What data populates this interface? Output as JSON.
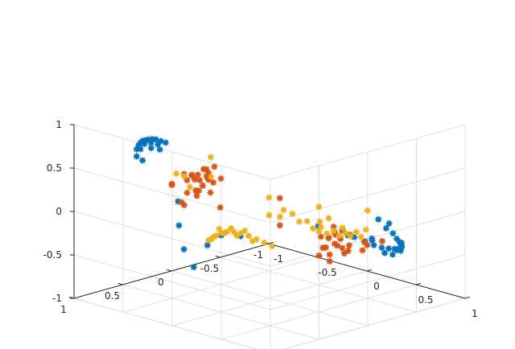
{
  "chart_data": {
    "type": "scatter",
    "projection": "3d",
    "grid": true,
    "box": "open",
    "xlim": [
      -1,
      1
    ],
    "ylim": [
      -1,
      1
    ],
    "zlim": [
      -1,
      1
    ],
    "ticks": {
      "x": [
        {
          "value": -1,
          "label": "-1"
        },
        {
          "value": -0.5,
          "label": "-0.5"
        },
        {
          "value": 0,
          "label": "0"
        },
        {
          "value": 0.5,
          "label": "0.5"
        },
        {
          "value": 1,
          "label": "1"
        }
      ],
      "y": [
        {
          "value": -1,
          "label": "-1"
        },
        {
          "value": -0.5,
          "label": "-0.5"
        },
        {
          "value": 0,
          "label": "0"
        },
        {
          "value": 0.5,
          "label": "0.5"
        },
        {
          "value": 1,
          "label": "1"
        }
      ],
      "z": [
        {
          "value": -1,
          "label": "-1"
        },
        {
          "value": -0.5,
          "label": "-0.5"
        },
        {
          "value": 0,
          "label": "0"
        },
        {
          "value": 0.5,
          "label": "0.5"
        },
        {
          "value": 1,
          "label": "1"
        }
      ]
    },
    "colors": {
      "axis": "#262626",
      "grid": "#dfdfdf",
      "series": [
        "#0072bd",
        "#d95319",
        "#edb120"
      ]
    },
    "marker": "asterisk",
    "series": [
      {
        "color": "#0072bd",
        "points": [
          [
            -0.66,
            0.7,
            0.73
          ],
          [
            -0.7,
            0.64,
            0.74
          ],
          [
            -0.74,
            0.58,
            0.74
          ],
          [
            -0.78,
            0.52,
            0.73
          ],
          [
            -0.81,
            0.46,
            0.71
          ],
          [
            -0.84,
            0.4,
            0.69
          ],
          [
            -0.86,
            0.34,
            0.67
          ],
          [
            -0.88,
            0.28,
            0.64
          ],
          [
            -0.89,
            0.22,
            0.6
          ],
          [
            -0.9,
            0.16,
            0.56
          ],
          [
            -0.72,
            0.6,
            0.68
          ],
          [
            -0.78,
            0.5,
            0.69
          ],
          [
            -0.83,
            0.38,
            0.65
          ],
          [
            -0.86,
            0.28,
            0.59
          ],
          [
            -0.64,
            0.72,
            0.66
          ],
          [
            -0.6,
            0.7,
            0.62
          ],
          [
            -0.75,
            0.46,
            0.64
          ],
          [
            -0.82,
            0.3,
            0.55
          ],
          [
            0.28,
            0.78,
            0.06
          ],
          [
            0.2,
            0.84,
            -0.06
          ],
          [
            0.12,
            0.9,
            -0.32
          ],
          [
            0.3,
            0.6,
            0.0
          ],
          [
            -0.02,
            0.92,
            0.4
          ],
          [
            0.06,
            0.94,
            -0.12
          ],
          [
            -0.05,
            0.88,
            0.1
          ],
          [
            -0.15,
            -0.9,
            -0.55
          ],
          [
            -0.05,
            -0.92,
            -0.6
          ],
          [
            0.05,
            -0.93,
            -0.62
          ],
          [
            0.15,
            -0.92,
            -0.63
          ],
          [
            0.25,
            -0.9,
            -0.62
          ],
          [
            0.35,
            -0.87,
            -0.59
          ],
          [
            0.45,
            -0.83,
            -0.55
          ],
          [
            0.55,
            -0.78,
            -0.5
          ],
          [
            0.63,
            -0.72,
            -0.44
          ],
          [
            0.7,
            -0.65,
            -0.38
          ],
          [
            0.76,
            -0.58,
            -0.31
          ],
          [
            0.8,
            -0.5,
            -0.22
          ],
          [
            0.84,
            -0.42,
            -0.12
          ],
          [
            0.87,
            -0.32,
            -0.02
          ],
          [
            0.89,
            -0.22,
            0.12
          ],
          [
            0.3,
            -0.88,
            -0.66
          ],
          [
            0.5,
            -0.8,
            -0.54
          ],
          [
            0.65,
            -0.7,
            -0.38
          ],
          [
            0.78,
            -0.55,
            -0.28
          ],
          [
            0.86,
            -0.36,
            0.02
          ],
          [
            0.1,
            -0.95,
            -0.58
          ],
          [
            0.4,
            -0.86,
            -0.64
          ],
          [
            0.72,
            -0.62,
            -0.42
          ],
          [
            -0.2,
            -0.7,
            -0.45
          ],
          [
            0.2,
            -0.6,
            -0.4
          ],
          [
            0.5,
            -0.55,
            -0.35
          ]
        ]
      },
      {
        "color": "#d95319",
        "points": [
          [
            -0.93,
            -0.22,
            0.0
          ],
          [
            -0.91,
            -0.18,
            0.08
          ],
          [
            -0.94,
            -0.26,
            -0.08
          ],
          [
            -0.9,
            -0.14,
            0.04
          ],
          [
            -0.95,
            -0.2,
            -0.12
          ],
          [
            -0.92,
            -0.3,
            0.06
          ],
          [
            -0.88,
            -0.2,
            -0.04
          ],
          [
            -0.96,
            -0.12,
            0.02
          ],
          [
            -0.9,
            -0.26,
            0.12
          ],
          [
            -0.94,
            -0.32,
            -0.02
          ],
          [
            -0.89,
            -0.1,
            0.1
          ],
          [
            -0.97,
            -0.18,
            0.06
          ],
          [
            -0.92,
            -0.08,
            -0.1
          ],
          [
            -0.86,
            -0.24,
            0.02
          ],
          [
            -0.95,
            -0.28,
            0.1
          ],
          [
            -0.91,
            -0.34,
            -0.06
          ],
          [
            -0.88,
            -0.14,
            -0.14
          ],
          [
            -0.93,
            -0.06,
            0.12
          ],
          [
            -0.84,
            -0.2,
            0.08
          ],
          [
            -0.9,
            -0.3,
            -0.16
          ],
          [
            -0.82,
            -0.1,
            -0.05
          ],
          [
            -0.86,
            -0.3,
            0.15
          ],
          [
            -0.87,
            0.0,
            -0.2
          ],
          [
            0.89,
            0.2,
            -0.05
          ],
          [
            0.92,
            0.26,
            0.0
          ],
          [
            0.88,
            0.14,
            -0.1
          ],
          [
            0.94,
            0.22,
            0.05
          ],
          [
            0.9,
            0.3,
            0.08
          ],
          [
            0.86,
            0.2,
            0.1
          ],
          [
            0.93,
            0.12,
            -0.06
          ],
          [
            0.91,
            0.34,
            -0.02
          ],
          [
            0.87,
            0.26,
            -0.14
          ],
          [
            0.95,
            0.28,
            0.12
          ],
          [
            0.9,
            0.08,
            0.04
          ],
          [
            0.84,
            0.3,
            -0.06
          ],
          [
            0.92,
            0.18,
            0.14
          ],
          [
            0.88,
            0.36,
            0.1
          ],
          [
            0.96,
            0.16,
            -0.1
          ],
          [
            0.86,
            0.1,
            -0.18
          ],
          [
            0.89,
            0.24,
            0.18
          ],
          [
            0.93,
            0.32,
            -0.18
          ],
          [
            0.82,
            0.22,
            0.02
          ],
          [
            0.9,
            0.4,
            -0.1
          ],
          [
            0.7,
            0.6,
            0.25
          ],
          [
            0.6,
            0.5,
            0.5
          ],
          [
            -0.45,
            0.55,
            0.35
          ],
          [
            -0.35,
            0.65,
            0.4
          ],
          [
            -0.3,
            0.6,
            0.2
          ],
          [
            0.25,
            -0.72,
            -0.5
          ],
          [
            0.4,
            -0.6,
            -0.45
          ],
          [
            0.55,
            -0.4,
            -0.4
          ],
          [
            0.8,
            -0.35,
            -0.2
          ],
          [
            -0.8,
            -0.3,
            -0.3
          ],
          [
            0.1,
            0.6,
            0.6
          ]
        ]
      },
      {
        "color": "#edb120",
        "points": [
          [
            0.7,
            0.76,
            0.1
          ],
          [
            0.66,
            0.8,
            0.14
          ],
          [
            0.62,
            0.84,
            0.18
          ],
          [
            0.58,
            0.88,
            0.21
          ],
          [
            0.54,
            0.91,
            0.22
          ],
          [
            0.5,
            0.94,
            0.22
          ],
          [
            0.46,
            0.96,
            0.2
          ],
          [
            0.42,
            0.97,
            0.16
          ],
          [
            0.38,
            0.98,
            0.11
          ],
          [
            0.74,
            0.72,
            0.06
          ],
          [
            0.64,
            0.82,
            0.12
          ],
          [
            0.56,
            0.9,
            0.18
          ],
          [
            0.48,
            0.95,
            0.2
          ],
          [
            0.4,
            0.98,
            0.14
          ],
          [
            0.34,
            0.97,
            0.08
          ],
          [
            0.6,
            0.86,
            0.24
          ],
          [
            0.52,
            0.92,
            0.26
          ],
          [
            0.44,
            0.96,
            0.24
          ],
          [
            -0.6,
            -0.84,
            -0.48
          ],
          [
            -0.5,
            -0.89,
            -0.55
          ],
          [
            -0.4,
            -0.93,
            -0.6
          ],
          [
            -0.3,
            -0.96,
            -0.62
          ],
          [
            -0.2,
            -0.98,
            -0.62
          ],
          [
            -0.1,
            -0.99,
            -0.58
          ],
          [
            0.0,
            -0.99,
            -0.52
          ],
          [
            -0.55,
            -0.86,
            -0.56
          ],
          [
            -0.45,
            -0.9,
            -0.62
          ],
          [
            -0.35,
            -0.94,
            -0.66
          ],
          [
            -0.25,
            -0.97,
            -0.66
          ],
          [
            -0.15,
            -0.98,
            -0.64
          ],
          [
            -0.05,
            -0.99,
            -0.62
          ],
          [
            -0.65,
            -0.8,
            -0.44
          ],
          [
            -0.38,
            -0.9,
            -0.52
          ],
          [
            -0.2,
            -0.95,
            -0.55
          ],
          [
            -0.85,
            0.1,
            0.2
          ],
          [
            -0.7,
            -0.7,
            -0.28
          ],
          [
            -0.92,
            -0.05,
            0.1
          ],
          [
            -0.6,
            -0.6,
            -0.42
          ],
          [
            -0.5,
            0.1,
            0.5
          ],
          [
            0.1,
            0.92,
            0.6
          ],
          [
            0.8,
            0.3,
            0.4
          ],
          [
            0.7,
            0.6,
            0.35
          ],
          [
            0.9,
            0.3,
            0.3
          ],
          [
            0.8,
            -0.2,
            0.2
          ],
          [
            0.85,
            0.35,
            0.15
          ],
          [
            -0.3,
            0.3,
            0.4
          ]
        ]
      }
    ]
  }
}
